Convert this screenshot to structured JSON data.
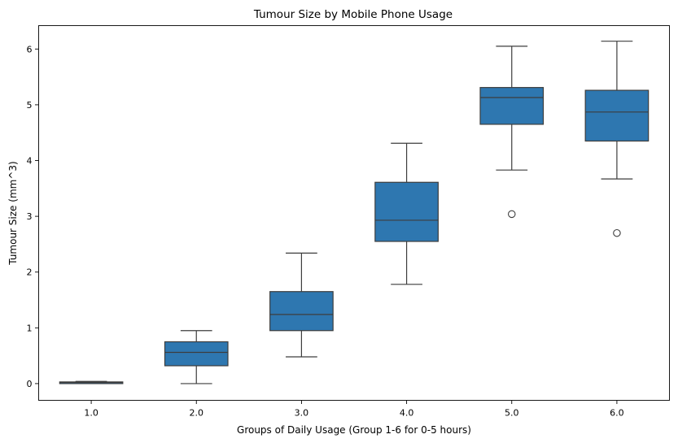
{
  "chart_data": {
    "type": "box",
    "title": "Tumour Size by Mobile Phone Usage",
    "xlabel": "Groups of Daily Usage (Group 1-6 for 0-5 hours)",
    "ylabel": "Tumour Size (mm^3)",
    "ylim": [
      -0.3,
      6.42
    ],
    "yticks": [
      "0",
      "1",
      "2",
      "3",
      "4",
      "5",
      "6"
    ],
    "grid": false,
    "box_color": "#2e77b0",
    "line_color": "#3d3d3d",
    "categories": [
      "1.0",
      "2.0",
      "3.0",
      "4.0",
      "5.0",
      "6.0"
    ],
    "boxes": [
      {
        "whisker_low": 0.0,
        "q1": 0.0,
        "median": 0.02,
        "q3": 0.03,
        "whisker_high": 0.04,
        "outliers": []
      },
      {
        "whisker_low": 0.0,
        "q1": 0.32,
        "median": 0.56,
        "q3": 0.75,
        "whisker_high": 0.95,
        "outliers": []
      },
      {
        "whisker_low": 0.48,
        "q1": 0.95,
        "median": 1.24,
        "q3": 1.65,
        "whisker_high": 2.34,
        "outliers": []
      },
      {
        "whisker_low": 1.78,
        "q1": 2.55,
        "median": 2.93,
        "q3": 3.61,
        "whisker_high": 4.31,
        "outliers": []
      },
      {
        "whisker_low": 3.83,
        "q1": 4.65,
        "median": 5.13,
        "q3": 5.31,
        "whisker_high": 6.05,
        "outliers": [
          3.04
        ]
      },
      {
        "whisker_low": 3.67,
        "q1": 4.35,
        "median": 4.87,
        "q3": 5.26,
        "whisker_high": 6.14,
        "outliers": [
          2.7
        ]
      }
    ]
  }
}
